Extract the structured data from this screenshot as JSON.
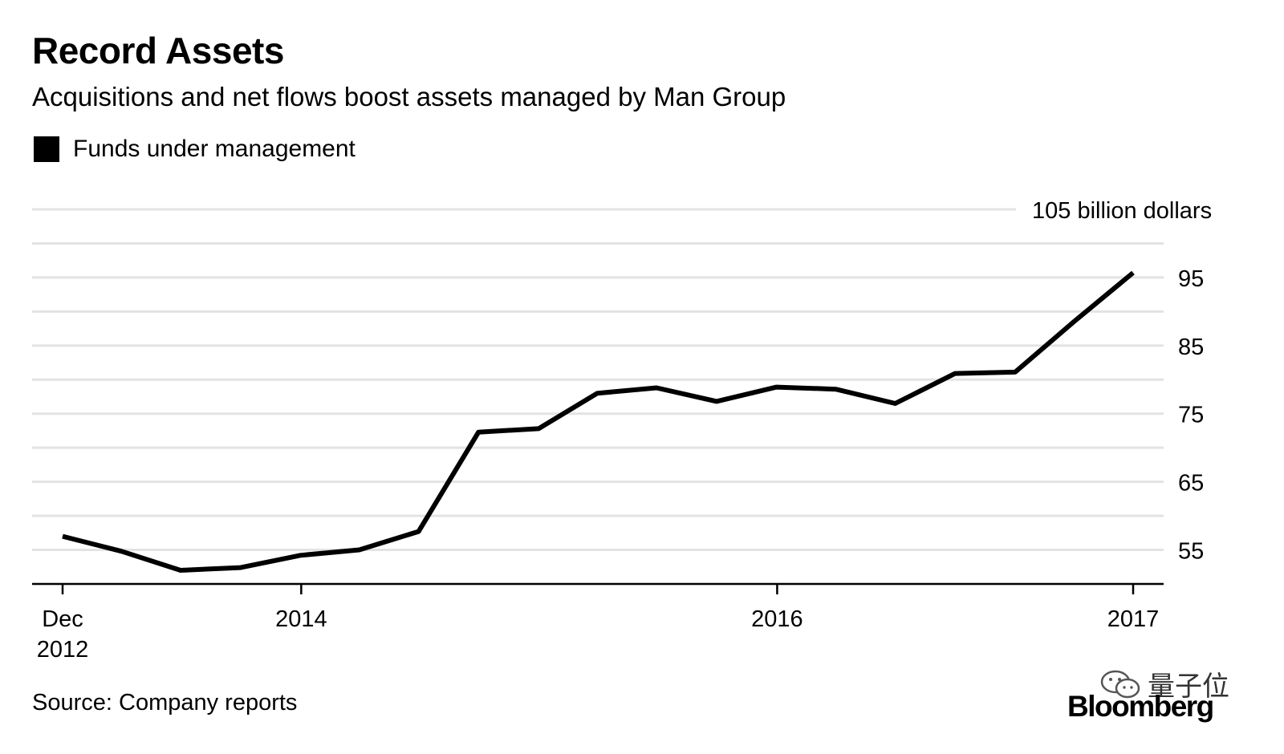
{
  "header": {
    "title": "Record Assets",
    "subtitle": "Acquisitions and net flows boost assets managed by Man Group"
  },
  "legend": {
    "label": "Funds under management",
    "color": "#000000"
  },
  "footer": {
    "source": "Source: Company reports",
    "brand": "Bloomberg",
    "watermark": "量子位"
  },
  "colors": {
    "line": "#000000",
    "grid": "#e3e3e3",
    "axis": "#000000",
    "text": "#000000"
  },
  "chart_data": {
    "type": "line",
    "title": "Record Assets",
    "subtitle": "Acquisitions and net flows boost assets managed by Man Group",
    "ylabel": "105 billion dollars",
    "ylim": [
      50,
      105
    ],
    "grid": true,
    "legend_position": "top-left",
    "y_ticks": [
      {
        "value": 105,
        "label": "105 billion dollars"
      },
      {
        "value": 95,
        "label": "95"
      },
      {
        "value": 85,
        "label": "85"
      },
      {
        "value": 75,
        "label": "75"
      },
      {
        "value": 65,
        "label": "65"
      },
      {
        "value": 55,
        "label": "55"
      }
    ],
    "x_ticks": [
      {
        "x": "2012-12-31",
        "label": [
          "Dec",
          "2012"
        ]
      },
      {
        "x": "2014-01-01",
        "label": [
          "2014"
        ]
      },
      {
        "x": "2016-01-01",
        "label": [
          "2016"
        ]
      },
      {
        "x": "2017-06-30",
        "label": [
          "2017"
        ]
      }
    ],
    "xlim": [
      "2012-12-31",
      "2017-06-30"
    ],
    "series": [
      {
        "name": "Funds under management",
        "color": "#000000",
        "points": [
          {
            "x": "2012-12-31",
            "y": 57.0
          },
          {
            "x": "2013-03-31",
            "y": 54.8
          },
          {
            "x": "2013-06-30",
            "y": 52.0
          },
          {
            "x": "2013-09-30",
            "y": 52.4
          },
          {
            "x": "2013-12-31",
            "y": 54.2
          },
          {
            "x": "2014-03-31",
            "y": 55.0
          },
          {
            "x": "2014-06-30",
            "y": 57.7
          },
          {
            "x": "2014-09-30",
            "y": 72.3
          },
          {
            "x": "2014-12-31",
            "y": 72.8
          },
          {
            "x": "2015-03-31",
            "y": 78.0
          },
          {
            "x": "2015-06-30",
            "y": 78.8
          },
          {
            "x": "2015-09-30",
            "y": 76.8
          },
          {
            "x": "2015-12-31",
            "y": 78.9
          },
          {
            "x": "2016-03-31",
            "y": 78.6
          },
          {
            "x": "2016-06-30",
            "y": 76.5
          },
          {
            "x": "2016-09-30",
            "y": 80.9
          },
          {
            "x": "2016-12-31",
            "y": 81.1
          },
          {
            "x": "2017-03-31",
            "y": 88.5
          },
          {
            "x": "2017-06-30",
            "y": 95.7
          }
        ]
      }
    ]
  }
}
